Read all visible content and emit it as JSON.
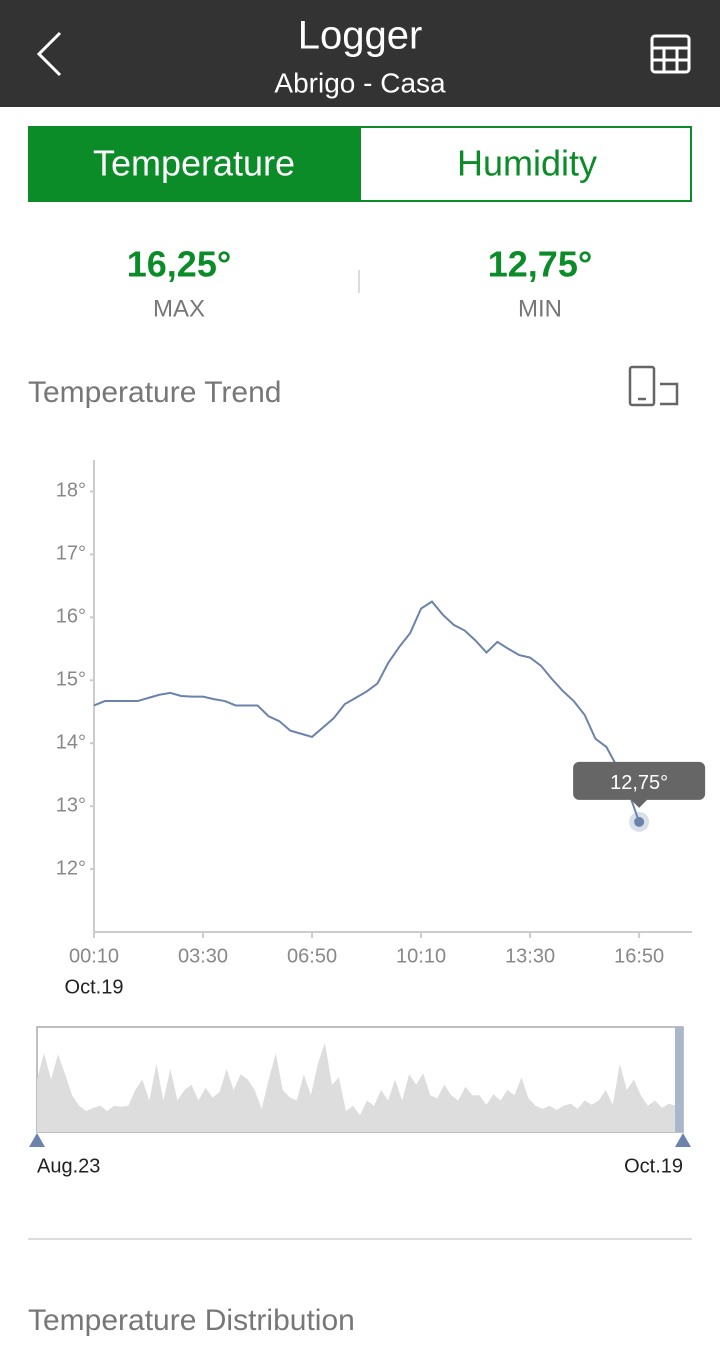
{
  "header": {
    "title": "Logger",
    "subtitle": "Abrigo - Casa"
  },
  "tabs": [
    "Temperature",
    "Humidity"
  ],
  "stats": [
    {
      "value": "16,25°",
      "label": "MAX"
    },
    {
      "value": "12,75°",
      "label": "MIN"
    }
  ],
  "section_title": "Temperature Trend",
  "chart_data": {
    "type": "line",
    "x": [
      "00:10",
      "00:30",
      "00:50",
      "01:10",
      "01:30",
      "01:50",
      "02:10",
      "02:30",
      "02:50",
      "03:10",
      "03:30",
      "03:50",
      "04:10",
      "04:30",
      "04:50",
      "05:10",
      "05:30",
      "05:50",
      "06:10",
      "06:30",
      "06:50",
      "07:10",
      "07:30",
      "07:50",
      "08:10",
      "08:30",
      "08:50",
      "09:10",
      "09:30",
      "09:50",
      "10:10",
      "10:30",
      "10:50",
      "11:10",
      "11:30",
      "11:50",
      "12:10",
      "12:30",
      "12:50",
      "13:10",
      "13:30",
      "13:50",
      "14:10",
      "14:30",
      "14:50",
      "15:10",
      "15:30",
      "15:50",
      "16:10",
      "16:30",
      "16:50"
    ],
    "series": [
      {
        "color": "#6b83aa",
        "values": [
          14.6,
          14.67,
          14.67,
          14.67,
          14.67,
          14.72,
          14.77,
          14.8,
          14.75,
          14.74,
          14.74,
          14.7,
          14.67,
          14.6,
          14.6,
          14.6,
          14.43,
          14.35,
          14.2,
          14.15,
          14.1,
          14.25,
          14.4,
          14.62,
          14.72,
          14.82,
          14.95,
          15.28,
          15.53,
          15.75,
          16.14,
          16.25,
          16.04,
          15.88,
          15.79,
          15.63,
          15.44,
          15.61,
          15.5,
          15.4,
          15.36,
          15.23,
          15.02,
          14.83,
          14.67,
          14.45,
          14.07,
          13.94,
          13.62,
          13.24,
          12.75
        ]
      }
    ],
    "xlim": [
      "00:10",
      "18:27"
    ],
    "xticks": [
      "00:10",
      "03:30",
      "06:50",
      "10:10",
      "13:30",
      "16:50"
    ],
    "x_date": "Oct.19",
    "ylim": [
      11,
      18.5
    ],
    "yticks": [
      {
        "value": 12,
        "label": "12°"
      },
      {
        "value": 13,
        "label": "13°"
      },
      {
        "value": 14,
        "label": "14°"
      },
      {
        "value": 15,
        "label": "15°"
      },
      {
        "value": 16,
        "label": "16°"
      },
      {
        "value": 17,
        "label": "17°"
      },
      {
        "value": 18,
        "label": "18°"
      }
    ],
    "tooltip": "12,75°"
  },
  "navigator": {
    "start": "Aug.23",
    "end": "Oct.19",
    "color": "#dddddd",
    "ylim": [
      0,
      10
    ],
    "values": [
      5,
      7.5,
      5,
      7.4,
      5.5,
      3.5,
      2.5,
      2,
      2.3,
      2.5,
      2,
      2.5,
      2.4,
      2.5,
      4,
      5,
      3,
      6.5,
      3,
      6,
      3,
      4,
      4.5,
      3,
      4.2,
      3.3,
      3.8,
      6,
      4,
      5.5,
      5,
      4,
      2.2,
      5,
      7.5,
      4,
      3.3,
      3,
      5.5,
      3.5,
      6.5,
      8.5,
      4.5,
      5.2,
      2,
      2.5,
      1.6,
      3,
      2.5,
      4,
      3,
      5,
      3,
      5.5,
      4.5,
      5.6,
      3.5,
      3.2,
      4.5,
      3.5,
      3,
      4.3,
      3.5,
      3.5,
      2.6,
      3.6,
      3,
      4,
      3.5,
      5.2,
      3.2,
      2.5,
      2.2,
      2.5,
      2.1,
      2.5,
      2.7,
      2.2,
      3,
      2.6,
      3,
      4,
      2.6,
      6.5,
      4,
      5,
      3.5,
      2.5,
      3,
      2.3,
      2.7,
      2.5,
      2.2
    ]
  },
  "distribution_title": "Temperature Distribution"
}
